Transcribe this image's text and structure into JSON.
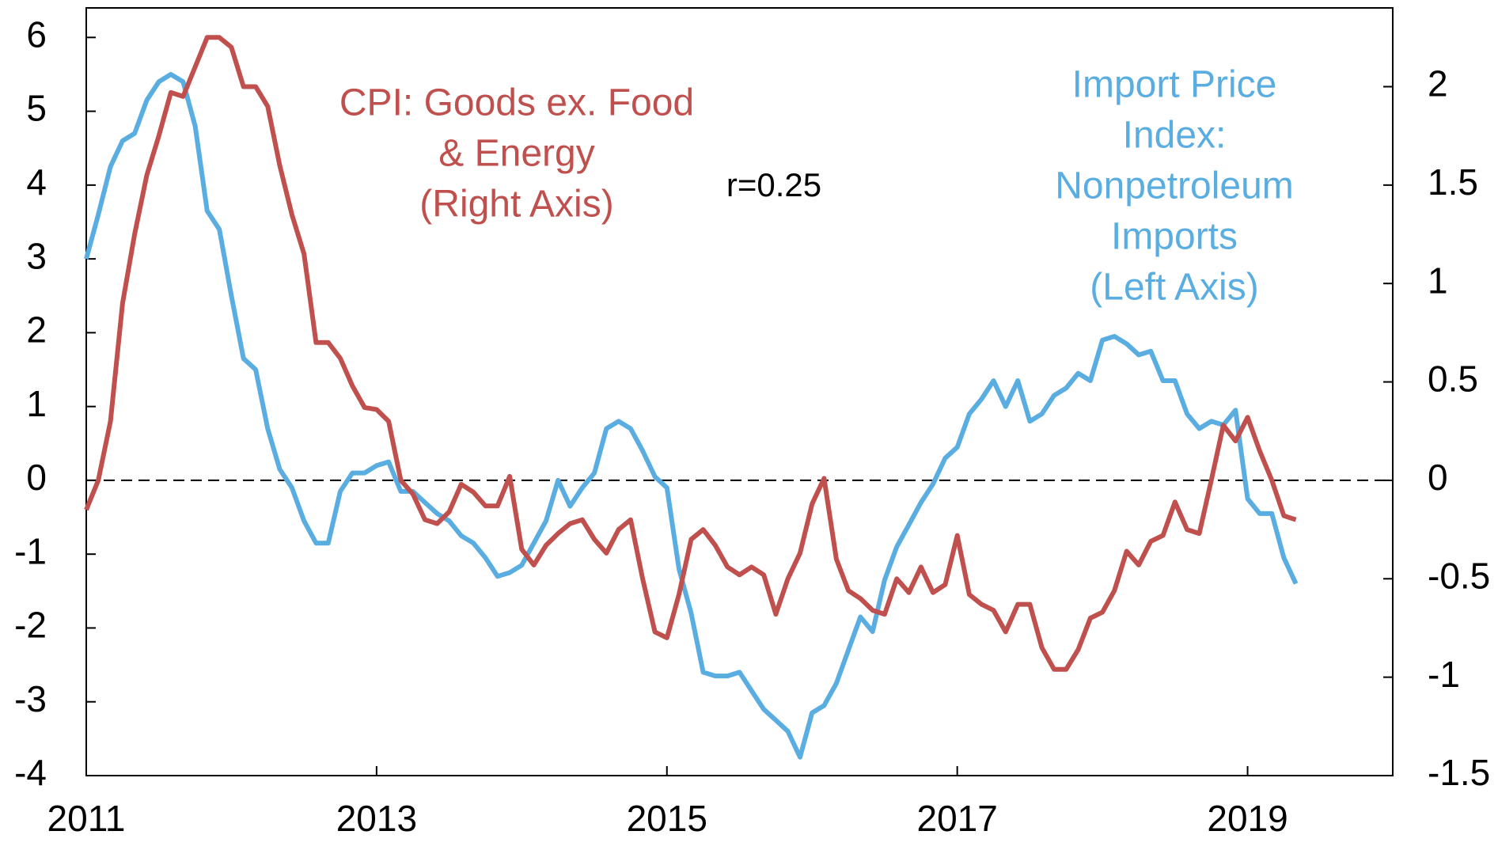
{
  "chart_data": {
    "type": "line",
    "x": [
      2011.0,
      2011.083,
      2011.167,
      2011.25,
      2011.333,
      2011.417,
      2011.5,
      2011.583,
      2011.667,
      2011.75,
      2011.833,
      2011.917,
      2012.0,
      2012.083,
      2012.167,
      2012.25,
      2012.333,
      2012.417,
      2012.5,
      2012.583,
      2012.667,
      2012.75,
      2012.833,
      2012.917,
      2013.0,
      2013.083,
      2013.167,
      2013.25,
      2013.333,
      2013.417,
      2013.5,
      2013.583,
      2013.667,
      2013.75,
      2013.833,
      2013.917,
      2014.0,
      2014.083,
      2014.167,
      2014.25,
      2014.333,
      2014.417,
      2014.5,
      2014.583,
      2014.667,
      2014.75,
      2014.833,
      2014.917,
      2015.0,
      2015.083,
      2015.167,
      2015.25,
      2015.333,
      2015.417,
      2015.5,
      2015.583,
      2015.667,
      2015.75,
      2015.833,
      2015.917,
      2016.0,
      2016.083,
      2016.167,
      2016.25,
      2016.333,
      2016.417,
      2016.5,
      2016.583,
      2016.667,
      2016.75,
      2016.833,
      2016.917,
      2017.0,
      2017.083,
      2017.167,
      2017.25,
      2017.333,
      2017.417,
      2017.5,
      2017.583,
      2017.667,
      2017.75,
      2017.833,
      2017.917,
      2018.0,
      2018.083,
      2018.167,
      2018.25,
      2018.333,
      2018.417,
      2018.5,
      2018.583,
      2018.667,
      2018.75,
      2018.833,
      2018.917,
      2019.0,
      2019.083,
      2019.167,
      2019.25,
      2019.333
    ],
    "series": [
      {
        "name": "Import Price Index: Nonpetroleum Imports (Left Axis)",
        "color": "#5aade0",
        "axis": "y",
        "values": [
          3.0,
          3.6,
          4.25,
          4.6,
          4.7,
          5.15,
          5.4,
          5.5,
          5.4,
          4.8,
          3.65,
          3.4,
          2.5,
          1.65,
          1.5,
          0.7,
          0.15,
          -0.1,
          -0.55,
          -0.85,
          -0.85,
          -0.15,
          0.1,
          0.1,
          0.2,
          0.25,
          -0.15,
          -0.15,
          -0.3,
          -0.45,
          -0.55,
          -0.75,
          -0.85,
          -1.05,
          -1.3,
          -1.25,
          -1.15,
          -0.85,
          -0.55,
          0.0,
          -0.35,
          -0.1,
          0.1,
          0.7,
          0.8,
          0.7,
          0.4,
          0.05,
          -0.1,
          -1.2,
          -1.8,
          -2.6,
          -2.65,
          -2.65,
          -2.6,
          -2.85,
          -3.1,
          -3.25,
          -3.4,
          -3.75,
          -3.15,
          -3.05,
          -2.75,
          -2.3,
          -1.85,
          -2.05,
          -1.35,
          -0.9,
          -0.6,
          -0.3,
          -0.05,
          0.3,
          0.45,
          0.9,
          1.1,
          1.35,
          1.0,
          1.35,
          0.8,
          0.9,
          1.15,
          1.25,
          1.45,
          1.35,
          1.9,
          1.95,
          1.85,
          1.7,
          1.75,
          1.35,
          1.35,
          0.9,
          0.7,
          0.8,
          0.75,
          0.95,
          -0.25,
          -0.45,
          -0.45,
          -1.05,
          -1.4
        ]
      },
      {
        "name": "CPI: Goods ex. Food & Energy (Right Axis)",
        "color": "#c0504d",
        "axis": "y2",
        "values": [
          -0.15,
          0.0,
          0.3,
          0.9,
          1.25,
          1.55,
          1.75,
          1.97,
          1.95,
          2.1,
          2.25,
          2.25,
          2.2,
          2.0,
          2.0,
          1.9,
          1.6,
          1.35,
          1.15,
          0.7,
          0.7,
          0.62,
          0.48,
          0.37,
          0.36,
          0.3,
          0.0,
          -0.07,
          -0.2,
          -0.22,
          -0.16,
          -0.02,
          -0.06,
          -0.13,
          -0.13,
          0.02,
          -0.35,
          -0.43,
          -0.33,
          -0.27,
          -0.22,
          -0.2,
          -0.3,
          -0.37,
          -0.25,
          -0.2,
          -0.5,
          -0.77,
          -0.8,
          -0.58,
          -0.3,
          -0.25,
          -0.33,
          -0.44,
          -0.48,
          -0.44,
          -0.48,
          -0.68,
          -0.5,
          -0.37,
          -0.12,
          0.01,
          -0.4,
          -0.56,
          -0.6,
          -0.66,
          -0.68,
          -0.5,
          -0.57,
          -0.44,
          -0.57,
          -0.53,
          -0.28,
          -0.58,
          -0.63,
          -0.66,
          -0.77,
          -0.63,
          -0.63,
          -0.85,
          -0.96,
          -0.96,
          -0.86,
          -0.7,
          -0.67,
          -0.56,
          -0.36,
          -0.43,
          -0.31,
          -0.28,
          -0.11,
          -0.25,
          -0.27,
          0.0,
          0.28,
          0.2,
          0.32,
          0.15,
          0.0,
          -0.18,
          -0.2
        ]
      }
    ],
    "annotations": [
      {
        "lines": [
          "CPI: Goods ex. Food",
          "& Energy",
          "(Right Axis)"
        ],
        "color": "#c0504d"
      },
      {
        "lines": [
          "Import Price",
          "Index:",
          "Nonpetroleum",
          "Imports",
          "(Left Axis)"
        ],
        "color": "#5aade0"
      },
      {
        "lines": [
          "r=0.25"
        ],
        "color": "#000000"
      }
    ],
    "xlim": [
      2011,
      2020
    ],
    "xticks": [
      2011,
      2013,
      2015,
      2017,
      2019
    ],
    "ylim": [
      -4,
      6.4
    ],
    "yticks": [
      -4,
      -3,
      -2,
      -1,
      0,
      1,
      2,
      3,
      4,
      5,
      6
    ],
    "y2lim": [
      -1.5,
      2.4
    ],
    "y2ticks": [
      -1.5,
      -1,
      -0.5,
      0,
      0.5,
      1,
      1.5,
      2
    ],
    "zero_line": true
  }
}
